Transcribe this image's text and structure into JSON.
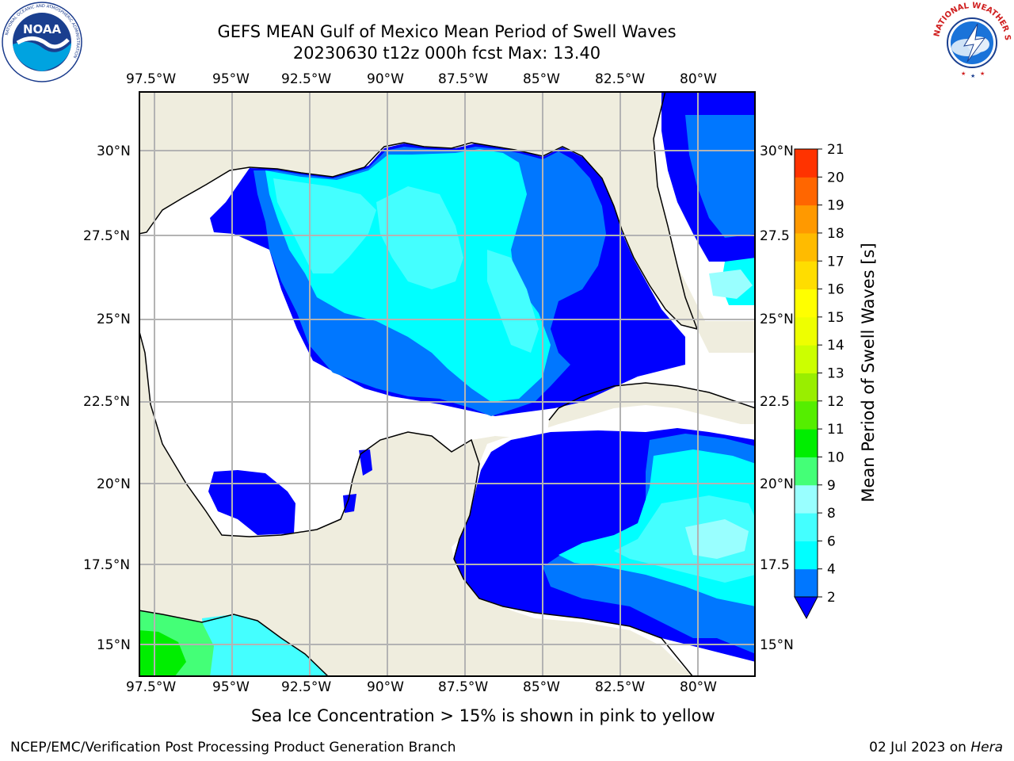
{
  "header": {
    "title_line1": "GEFS MEAN Gulf of Mexico Mean Period of Swell Waves",
    "title_line2": "20230630 t12z 000h fcst   Max: 13.40"
  },
  "logos": {
    "noaa": {
      "name": "NOAA",
      "ring_text": "NATIONAL OCEANIC AND ATMOSPHERIC ADMINISTRATION",
      "ring_text_bottom": "U.S. DEPARTMENT OF COMMERCE"
    },
    "nws": {
      "ring_text": "NATIONAL WEATHER SERVICE"
    }
  },
  "map": {
    "lon_ticks": [
      "97.5°W",
      "95°W",
      "92.5°W",
      "90°W",
      "87.5°W",
      "85°W",
      "82.5°W",
      "80°W"
    ],
    "lat_ticks_left": [
      "30°N",
      "27.5°N",
      "25°N",
      "22.5°N",
      "20°N",
      "17.5°N",
      "15°N"
    ],
    "lat_ticks_right": [
      "30°N",
      "27.5",
      "25°N",
      "22.5",
      "20°N",
      "17.5",
      "15°N"
    ],
    "colors": {
      "land": "#efedde",
      "ocean_unfilled": "#ffffff",
      "coast": "#000000",
      "grid": "#b3b3b3"
    }
  },
  "colorbar": {
    "label": "Mean Period of Swell Waves [s]",
    "ticks": [
      "2",
      "4",
      "6",
      "8",
      "9",
      "10",
      "11",
      "12",
      "13",
      "14",
      "15",
      "16",
      "17",
      "18",
      "19",
      "20",
      "21"
    ],
    "colors": [
      "#0077ff",
      "#00ffff",
      "#44ffff",
      "#99ffff",
      "#44ff77",
      "#00ee00",
      "#55ee00",
      "#99ee00",
      "#ccff00",
      "#eeff00",
      "#ffff00",
      "#ffdd00",
      "#ffbb00",
      "#ff9900",
      "#ff6600",
      "#ff3300"
    ],
    "under_color": "#0000ff",
    "over_color": "#ff0000"
  },
  "notes": {
    "sea_ice": "Sea Ice Concentration > 15% is shown in pink to yellow"
  },
  "footer": {
    "left": "NCEP/EMC/Verification Post Processing Product Generation Branch",
    "date": "02 Jul 2023 on",
    "machine": "Hera"
  }
}
